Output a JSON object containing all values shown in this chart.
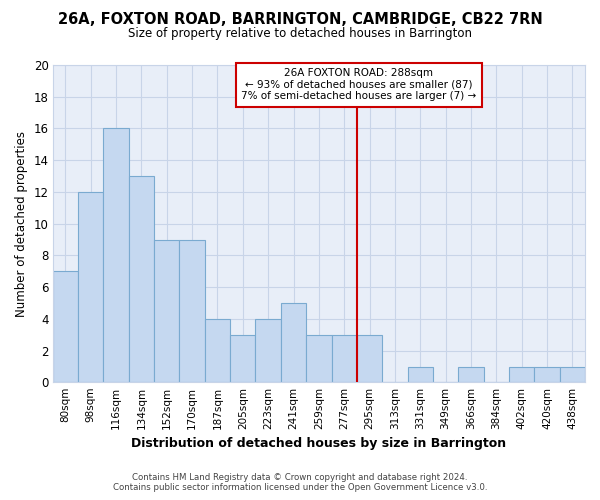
{
  "title": "26A, FOXTON ROAD, BARRINGTON, CAMBRIDGE, CB22 7RN",
  "subtitle": "Size of property relative to detached houses in Barrington",
  "xlabel": "Distribution of detached houses by size in Barrington",
  "ylabel": "Number of detached properties",
  "categories": [
    "80sqm",
    "98sqm",
    "116sqm",
    "134sqm",
    "152sqm",
    "170sqm",
    "187sqm",
    "205sqm",
    "223sqm",
    "241sqm",
    "259sqm",
    "277sqm",
    "295sqm",
    "313sqm",
    "331sqm",
    "349sqm",
    "366sqm",
    "384sqm",
    "402sqm",
    "420sqm",
    "438sqm"
  ],
  "values": [
    7,
    12,
    16,
    13,
    9,
    9,
    4,
    3,
    4,
    5,
    3,
    3,
    3,
    0,
    1,
    0,
    1,
    0,
    1,
    1,
    1
  ],
  "bar_color": "#c5d8f0",
  "bar_edge_color": "#7aaad0",
  "plot_bg_color": "#e8eef8",
  "fig_bg_color": "#ffffff",
  "grid_color": "#c8d4e8",
  "vline_color": "#cc0000",
  "vline_x_index": 11.5,
  "annotation_title": "26A FOXTON ROAD: 288sqm",
  "annotation_line1": "← 93% of detached houses are smaller (87)",
  "annotation_line2": "7% of semi-detached houses are larger (7) →",
  "annotation_box_edge": "#cc0000",
  "ylim": [
    0,
    20
  ],
  "yticks": [
    0,
    2,
    4,
    6,
    8,
    10,
    12,
    14,
    16,
    18,
    20
  ],
  "footer1": "Contains HM Land Registry data © Crown copyright and database right 2024.",
  "footer2": "Contains public sector information licensed under the Open Government Licence v3.0."
}
